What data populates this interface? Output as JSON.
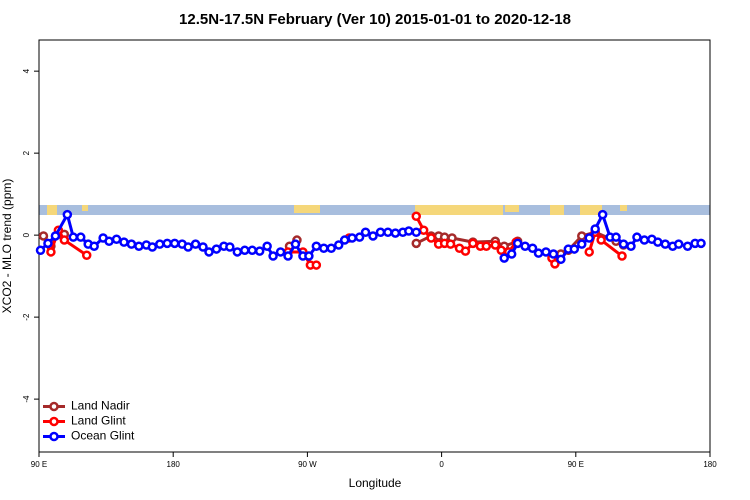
{
  "chart_data": {
    "type": "line",
    "title": "12.5N-17.5N February (Ver 10)   2015-01-01 to 2020-12-18",
    "x_label": "Longitude",
    "y_label": "XCO2 - MLO trend (ppm)",
    "xlim": [
      90,
      540
    ],
    "ylim": [
      -5.29,
      4.76
    ],
    "xticks": [
      {
        "value": 90,
        "label": "90 E"
      },
      180,
      {
        "value": 270,
        "label": "90 W"
      },
      {
        "value": 360,
        "label": "0"
      },
      {
        "value": 450,
        "label": "90 E"
      },
      {
        "value": 540,
        "label": "180"
      }
    ],
    "yticks": [
      -4,
      -2,
      0,
      2,
      4
    ],
    "legend": "bottomleft",
    "series": [
      {
        "name": "Land Nadir",
        "color": "#a52a2a",
        "x": [
          93,
          98,
          103,
          107,
          180,
          258,
          263,
          300,
          343,
          353,
          358,
          362,
          367,
          381,
          396,
          402,
          411,
          425,
          440,
          445,
          454,
          463,
          477,
          482
        ],
        "values": [
          -0.02,
          -0.27,
          0.02,
          0.02,
          null,
          -0.27,
          -0.12,
          null,
          -0.2,
          -0.02,
          -0.02,
          -0.05,
          -0.07,
          -0.17,
          -0.15,
          -0.27,
          -0.15,
          null,
          -0.46,
          -0.37,
          -0.02,
          0.07,
          -0.15,
          -0.24
        ]
      },
      {
        "name": "Land Glint",
        "color": "#ff0000",
        "x": [
          98,
          103,
          107,
          122,
          180,
          257,
          267,
          272,
          276,
          287,
          298,
          320,
          343,
          348,
          353,
          358,
          362,
          366,
          372,
          376,
          381,
          386,
          390,
          396,
          400,
          405,
          410,
          425,
          434,
          436,
          445,
          459,
          463,
          467,
          481
        ],
        "values": [
          -0.41,
          0.12,
          -0.12,
          -0.49,
          null,
          -0.41,
          -0.41,
          -0.73,
          -0.73,
          null,
          -0.07,
          null,
          0.46,
          0.12,
          -0.07,
          -0.22,
          -0.2,
          -0.22,
          -0.32,
          -0.39,
          -0.2,
          -0.27,
          -0.27,
          -0.24,
          -0.37,
          -0.41,
          -0.17,
          null,
          -0.56,
          -0.7,
          null,
          -0.41,
          0.07,
          -0.12,
          -0.51
        ]
      },
      {
        "name": "Ocean Glint",
        "color": "#0000ff",
        "x": [
          91,
          96,
          101,
          109,
          113,
          118,
          123,
          127,
          133,
          137,
          142,
          147,
          152,
          157,
          162,
          166,
          171,
          176,
          181,
          186,
          190,
          195,
          200,
          204,
          209,
          214,
          218,
          223,
          228,
          233,
          238,
          243,
          247,
          252,
          257,
          262,
          267,
          271,
          276,
          281,
          286,
          291,
          295,
          300,
          305,
          309,
          314,
          319,
          324,
          329,
          334,
          338,
          343,
          370,
          402,
          407,
          411,
          416,
          421,
          425,
          430,
          435,
          440,
          445,
          449,
          454,
          459,
          463,
          468,
          473,
          477,
          482,
          487,
          491,
          496,
          501,
          505,
          510,
          515,
          519,
          525,
          530,
          534
        ],
        "values": [
          -0.37,
          -0.2,
          -0.02,
          0.5,
          -0.05,
          -0.05,
          -0.22,
          -0.27,
          -0.07,
          -0.15,
          -0.1,
          -0.17,
          -0.22,
          -0.27,
          -0.24,
          -0.29,
          -0.22,
          -0.2,
          -0.2,
          -0.22,
          -0.29,
          -0.22,
          -0.29,
          -0.41,
          -0.34,
          -0.27,
          -0.29,
          -0.41,
          -0.37,
          -0.37,
          -0.39,
          -0.27,
          -0.51,
          -0.41,
          -0.51,
          -0.22,
          -0.51,
          -0.51,
          -0.27,
          -0.32,
          -0.32,
          -0.24,
          -0.12,
          -0.07,
          -0.05,
          0.07,
          -0.02,
          0.07,
          0.07,
          0.05,
          0.07,
          0.1,
          0.07,
          null,
          -0.56,
          -0.46,
          -0.2,
          -0.27,
          -0.32,
          -0.44,
          -0.41,
          -0.46,
          -0.59,
          -0.34,
          -0.34,
          -0.22,
          -0.07,
          0.15,
          0.5,
          -0.05,
          -0.05,
          -0.22,
          -0.27,
          -0.05,
          -0.12,
          -0.1,
          -0.17,
          -0.22,
          -0.27,
          -0.22,
          -0.27,
          -0.2,
          -0.2
        ]
      }
    ]
  }
}
